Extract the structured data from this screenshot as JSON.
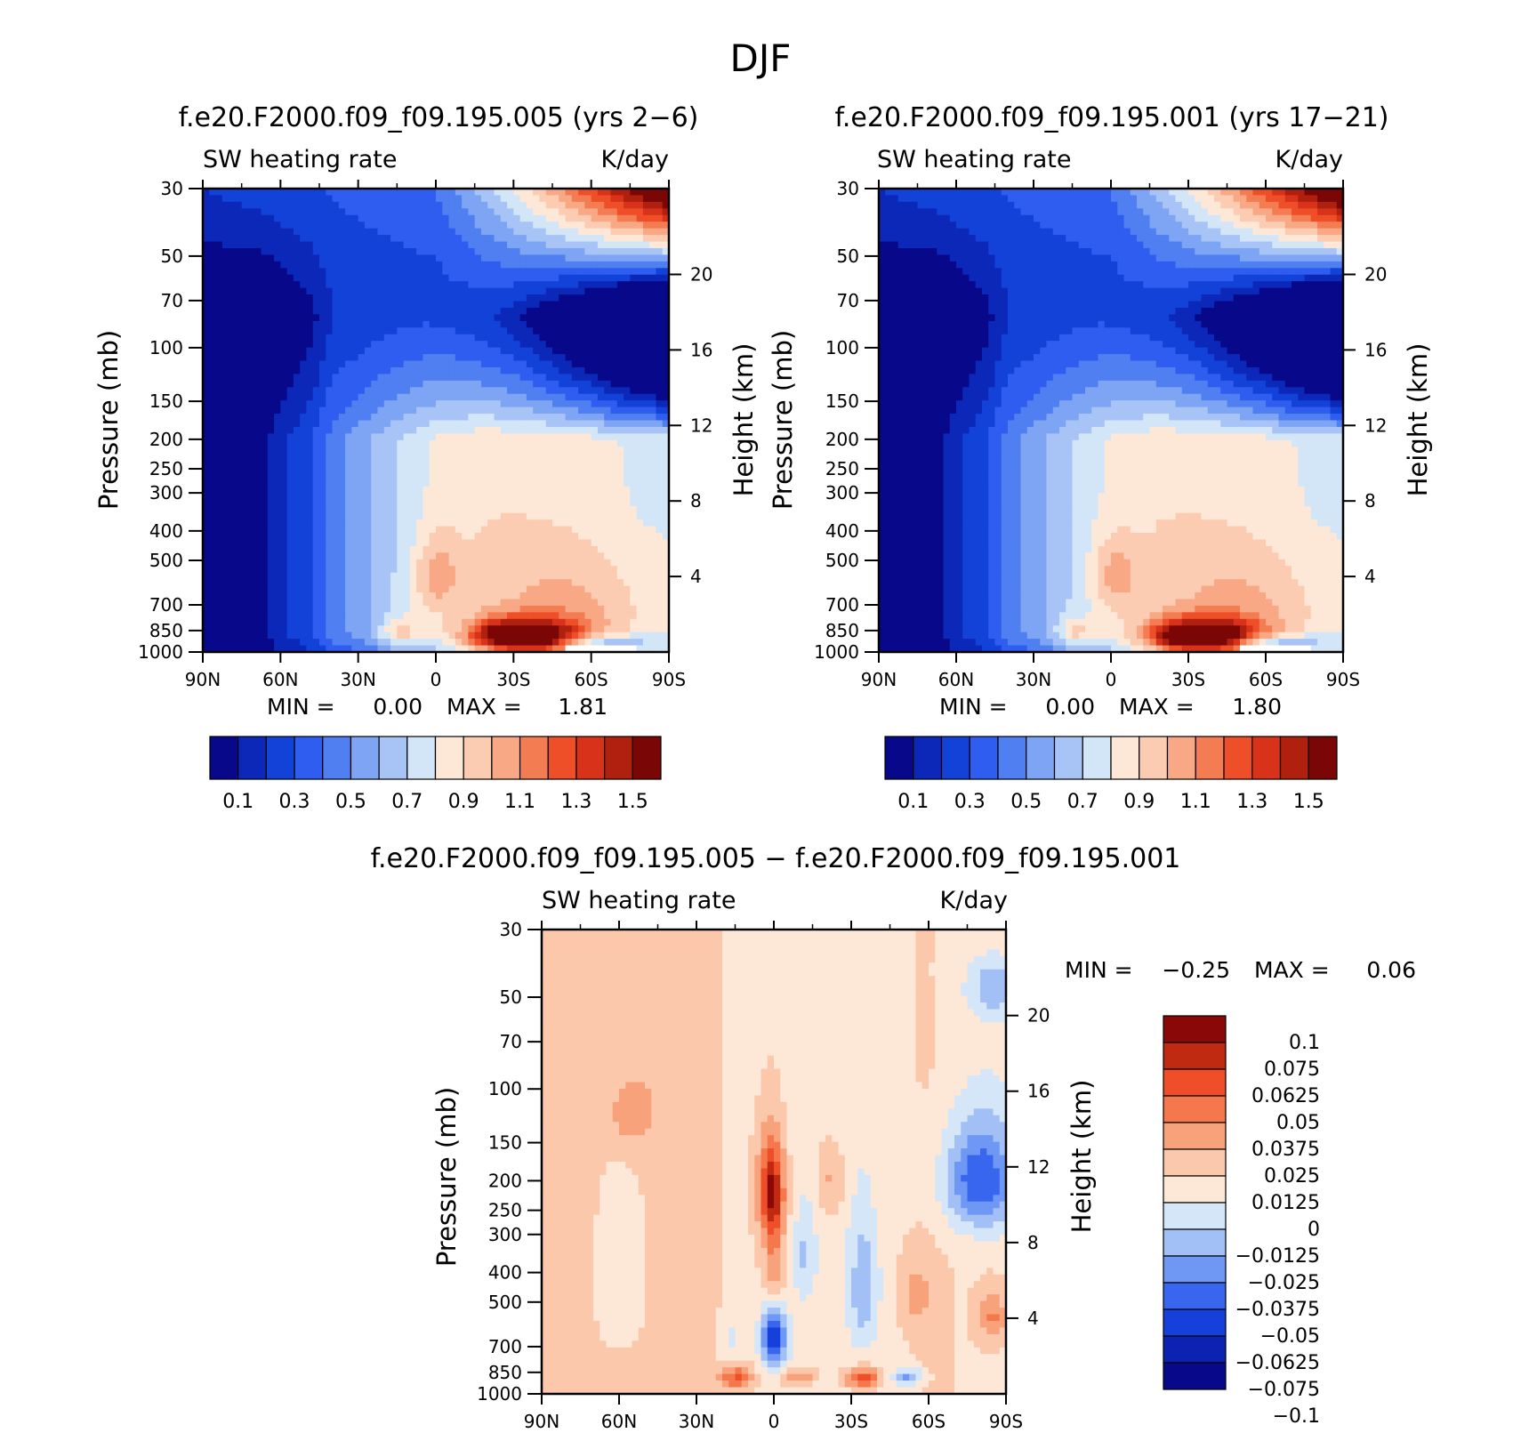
{
  "figure": {
    "title": "DJF"
  },
  "colors": {
    "sequential": [
      "#08088a",
      "#0c28b8",
      "#1342d8",
      "#2e5df0",
      "#4f7ff0",
      "#7ea5f4",
      "#a8c4f6",
      "#d2e6f8",
      "#fde8d8",
      "#fbcbb2",
      "#f8a884",
      "#f47c52",
      "#ee4e28",
      "#d8321a",
      "#b0200e",
      "#7a0606"
    ],
    "diverging": [
      "#08088a",
      "#0b22b3",
      "#1640dc",
      "#3866ef",
      "#6e98f3",
      "#a2c0f6",
      "#d4e6f8",
      "#fde8d8",
      "#fbc8ab",
      "#f8a27c",
      "#f4784c",
      "#ee4e28",
      "#c02a10",
      "#8a0808"
    ]
  },
  "chart_data": [
    {
      "type": "heatmap",
      "name": "panel-a",
      "title": "f.e20.F2000.f09_f09.195.005 (yrs 2−6)",
      "left_label": "SW heating rate",
      "right_label": "K/day",
      "ylabel": "Pressure (mb)",
      "y2label": "Height (km)",
      "xticklabels": [
        "90N",
        "60N",
        "30N",
        "0",
        "30S",
        "60S",
        "90S"
      ],
      "xlim": [
        -90,
        90
      ],
      "ylim": [
        1000,
        30
      ],
      "pressure_ticks": [
        30,
        50,
        70,
        100,
        150,
        200,
        250,
        300,
        400,
        500,
        700,
        850,
        1000
      ],
      "height_ticks": [
        20,
        16,
        12,
        8,
        4
      ],
      "min_label": "MIN =",
      "min_value": "0.00",
      "max_label": "MAX =",
      "max_value": "1.81",
      "colorbar_ticklabels": [
        "0.1",
        "0.3",
        "0.5",
        "0.7",
        "0.9",
        "1.1",
        "1.3",
        "1.5"
      ],
      "levels": [
        0.1,
        0.2,
        0.3,
        0.4,
        0.5,
        0.6,
        0.7,
        0.8,
        0.9,
        1.0,
        1.1,
        1.2,
        1.3,
        1.4,
        1.5
      ],
      "field": {
        "base": [
          {
            "lat": -90,
            "v": 0.05
          },
          {
            "lat": -68,
            "v": 0.05
          },
          {
            "lat": -62,
            "v": 0.15
          },
          {
            "lat": -48,
            "v": 0.3
          },
          {
            "lat": -40,
            "v": 0.45
          },
          {
            "lat": -30,
            "v": 0.55
          },
          {
            "lat": -20,
            "v": 0.65
          },
          {
            "lat": -5,
            "v": 0.78
          },
          {
            "lat": 5,
            "v": 0.84
          },
          {
            "lat": 20,
            "v": 0.88
          },
          {
            "lat": 40,
            "v": 0.87
          },
          {
            "lat": 55,
            "v": 0.85
          },
          {
            "lat": 70,
            "v": 0.8
          },
          {
            "lat": 80,
            "v": 0.78
          },
          {
            "lat": 90,
            "v": 0.78
          }
        ],
        "blobs": [
          {
            "lat": 36,
            "p": 890,
            "dlat": 14,
            "dp": 85,
            "amp": 0.95
          },
          {
            "lat": 22,
            "p": 880,
            "dlat": 6,
            "dp": 60,
            "amp": 0.2
          },
          {
            "lat": -14,
            "p": 870,
            "dlat": 5,
            "dp": 70,
            "amp": 0.25
          },
          {
            "lat": 0,
            "p": 560,
            "dlat": 6,
            "dp": 110,
            "amp": 0.22
          },
          {
            "lat": 60,
            "p": 820,
            "dlat": 18,
            "dp": 180,
            "amp": 0.12
          },
          {
            "lat": 45,
            "p": 600,
            "dlat": 30,
            "dp": 150,
            "amp": 0.1
          },
          {
            "lat": 62,
            "p": 940,
            "dlat": 14,
            "dp": 45,
            "amp": -0.35
          },
          {
            "lat": -10,
            "p": 980,
            "dlat": 35,
            "dp": 50,
            "amp": -0.15
          }
        ],
        "upper_decay": [
          {
            "lat": -90,
            "k": 0.2
          },
          {
            "lat": -40,
            "k": 0.35
          },
          {
            "lat": 0,
            "k": 0.75
          },
          {
            "lat": 30,
            "k": 1.05
          },
          {
            "lat": 60,
            "k": 1.6
          },
          {
            "lat": 90,
            "k": 2.2
          }
        ],
        "stratosphere": [
          {
            "lat": -90,
            "v": 0.2
          },
          {
            "lat": 0,
            "v": 0.4
          },
          {
            "lat": 30,
            "v": 0.8
          },
          {
            "lat": 60,
            "v": 1.3
          },
          {
            "lat": 90,
            "v": 1.8
          }
        ],
        "missing": {
          "lat_min": 49,
          "lat_max": 78,
          "p_min": 965
        }
      }
    },
    {
      "type": "heatmap",
      "name": "panel-b",
      "title": "f.e20.F2000.f09_f09.195.001 (yrs 17−21)",
      "left_label": "SW heating rate",
      "right_label": "K/day",
      "ylabel": "Pressure (mb)",
      "y2label": "Height (km)",
      "xticklabels": [
        "90N",
        "60N",
        "30N",
        "0",
        "30S",
        "60S",
        "90S"
      ],
      "xlim": [
        -90,
        90
      ],
      "ylim": [
        1000,
        30
      ],
      "pressure_ticks": [
        30,
        50,
        70,
        100,
        150,
        200,
        250,
        300,
        400,
        500,
        700,
        850,
        1000
      ],
      "height_ticks": [
        20,
        16,
        12,
        8,
        4
      ],
      "min_label": "MIN =",
      "min_value": "0.00",
      "max_label": "MAX =",
      "max_value": "1.80",
      "colorbar_ticklabels": [
        "0.1",
        "0.3",
        "0.5",
        "0.7",
        "0.9",
        "1.1",
        "1.3",
        "1.5"
      ],
      "levels": [
        0.1,
        0.2,
        0.3,
        0.4,
        0.5,
        0.6,
        0.7,
        0.8,
        0.9,
        1.0,
        1.1,
        1.2,
        1.3,
        1.4,
        1.5
      ],
      "field": {
        "base": [
          {
            "lat": -90,
            "v": 0.05
          },
          {
            "lat": -68,
            "v": 0.05
          },
          {
            "lat": -62,
            "v": 0.15
          },
          {
            "lat": -48,
            "v": 0.3
          },
          {
            "lat": -40,
            "v": 0.45
          },
          {
            "lat": -30,
            "v": 0.55
          },
          {
            "lat": -20,
            "v": 0.65
          },
          {
            "lat": -5,
            "v": 0.78
          },
          {
            "lat": 5,
            "v": 0.84
          },
          {
            "lat": 20,
            "v": 0.88
          },
          {
            "lat": 40,
            "v": 0.87
          },
          {
            "lat": 55,
            "v": 0.85
          },
          {
            "lat": 70,
            "v": 0.8
          },
          {
            "lat": 80,
            "v": 0.78
          },
          {
            "lat": 90,
            "v": 0.78
          }
        ],
        "blobs": [
          {
            "lat": 37,
            "p": 890,
            "dlat": 14,
            "dp": 85,
            "amp": 0.94
          },
          {
            "lat": 22,
            "p": 880,
            "dlat": 6,
            "dp": 60,
            "amp": 0.18
          },
          {
            "lat": -14,
            "p": 870,
            "dlat": 5,
            "dp": 70,
            "amp": 0.22
          },
          {
            "lat": 1,
            "p": 560,
            "dlat": 6,
            "dp": 110,
            "amp": 0.2
          },
          {
            "lat": 60,
            "p": 820,
            "dlat": 18,
            "dp": 180,
            "amp": 0.12
          },
          {
            "lat": 45,
            "p": 600,
            "dlat": 30,
            "dp": 150,
            "amp": 0.1
          },
          {
            "lat": 62,
            "p": 940,
            "dlat": 14,
            "dp": 45,
            "amp": -0.35
          },
          {
            "lat": -10,
            "p": 980,
            "dlat": 35,
            "dp": 50,
            "amp": -0.15
          }
        ],
        "upper_decay": [
          {
            "lat": -90,
            "k": 0.2
          },
          {
            "lat": -40,
            "k": 0.35
          },
          {
            "lat": 0,
            "k": 0.75
          },
          {
            "lat": 30,
            "k": 1.05
          },
          {
            "lat": 60,
            "k": 1.6
          },
          {
            "lat": 90,
            "k": 2.2
          }
        ],
        "stratosphere": [
          {
            "lat": -90,
            "v": 0.2
          },
          {
            "lat": 0,
            "v": 0.4
          },
          {
            "lat": 30,
            "v": 0.8
          },
          {
            "lat": 60,
            "v": 1.3
          },
          {
            "lat": 90,
            "v": 1.8
          }
        ],
        "missing": {
          "lat_min": 49,
          "lat_max": 78,
          "p_min": 965
        }
      }
    },
    {
      "type": "heatmap",
      "name": "panel-diff",
      "title": "f.e20.F2000.f09_f09.195.005 − f.e20.F2000.f09_f09.195.001",
      "left_label": "SW heating rate",
      "right_label": "K/day",
      "ylabel": "Pressure (mb)",
      "y2label": "Height (km)",
      "xticklabels": [
        "90N",
        "60N",
        "30N",
        "0",
        "30S",
        "60S",
        "90S"
      ],
      "xlim": [
        -90,
        90
      ],
      "ylim": [
        1000,
        30
      ],
      "pressure_ticks": [
        30,
        50,
        70,
        100,
        150,
        200,
        250,
        300,
        400,
        500,
        700,
        850,
        1000
      ],
      "height_ticks": [
        20,
        16,
        12,
        8,
        4
      ],
      "min_label": "MIN =",
      "min_value": "−0.25",
      "max_label": "MAX =",
      "max_value": "0.06",
      "colorbar_ticklabels": [
        "0.1",
        "0.075",
        "0.0625",
        "0.05",
        "0.0375",
        "0.025",
        "0.0125",
        "0",
        "−0.0125",
        "−0.025",
        "−0.0375",
        "−0.05",
        "−0.0625",
        "−0.075",
        "−0.1"
      ],
      "levels": [
        -0.1,
        -0.075,
        -0.0625,
        -0.05,
        -0.0375,
        -0.025,
        -0.0125,
        0,
        0.0125,
        0.025,
        0.0375,
        0.05,
        0.0625,
        0.075,
        0.1
      ],
      "field": {
        "base": [
          {
            "lat": -90,
            "v": 0.004
          },
          {
            "lat": -60,
            "v": 0.006
          },
          {
            "lat": -30,
            "v": 0.002
          },
          {
            "lat": 0,
            "v": -0.004
          },
          {
            "lat": 30,
            "v": -0.008
          },
          {
            "lat": 60,
            "v": 0.002
          },
          {
            "lat": 90,
            "v": -0.004
          }
        ],
        "blobs": [
          {
            "lat": -1,
            "p": 215,
            "dlat": 3.5,
            "dp": 55,
            "amp": 0.065
          },
          {
            "lat": 0,
            "p": 380,
            "dlat": 3,
            "dp": 110,
            "amp": 0.03
          },
          {
            "lat": -15,
            "p": 880,
            "dlat": 4.5,
            "dp": 55,
            "amp": 0.045
          },
          {
            "lat": 34,
            "p": 890,
            "dlat": 5,
            "dp": 50,
            "amp": 0.05
          },
          {
            "lat": 9,
            "p": 880,
            "dlat": 5,
            "dp": 40,
            "amp": 0.03
          },
          {
            "lat": -22,
            "p": 600,
            "dlat": 5,
            "dp": 180,
            "amp": 0.012
          },
          {
            "lat": -55,
            "p": 120,
            "dlat": 7,
            "dp": 25,
            "amp": 0.02
          },
          {
            "lat": 22,
            "p": 200,
            "dlat": 4,
            "dp": 40,
            "amp": 0.02
          },
          {
            "lat": 85,
            "p": 560,
            "dlat": 4,
            "dp": 80,
            "amp": 0.03
          },
          {
            "lat": 55,
            "p": 480,
            "dlat": 4,
            "dp": 80,
            "amp": 0.02
          },
          {
            "lat": 0,
            "p": 650,
            "dlat": 3.5,
            "dp": 110,
            "amp": -0.07
          },
          {
            "lat": -18,
            "p": 650,
            "dlat": 4,
            "dp": 170,
            "amp": -0.02
          },
          {
            "lat": 12,
            "p": 350,
            "dlat": 3,
            "dp": 90,
            "amp": -0.022
          },
          {
            "lat": 35,
            "p": 450,
            "dlat": 4,
            "dp": 150,
            "amp": -0.03
          },
          {
            "lat": 80,
            "p": 200,
            "dlat": 10,
            "dp": 60,
            "amp": -0.06
          },
          {
            "lat": 85,
            "p": 40,
            "dlat": 8,
            "dp": 10,
            "amp": -0.12
          },
          {
            "lat": 52,
            "p": 880,
            "dlat": 4,
            "dp": 40,
            "amp": -0.04
          },
          {
            "lat": -60,
            "p": 420,
            "dlat": 8,
            "dp": 250,
            "amp": -0.012
          }
        ],
        "upper_decay": [
          {
            "lat": -90,
            "k": 0
          },
          {
            "lat": 90,
            "k": 0
          }
        ],
        "stratosphere": [
          {
            "lat": -90,
            "v": 0
          },
          {
            "lat": 90,
            "v": 0
          }
        ],
        "missing": {
          "lat_min": 50,
          "lat_max": 85,
          "p_min": 980
        }
      }
    }
  ]
}
